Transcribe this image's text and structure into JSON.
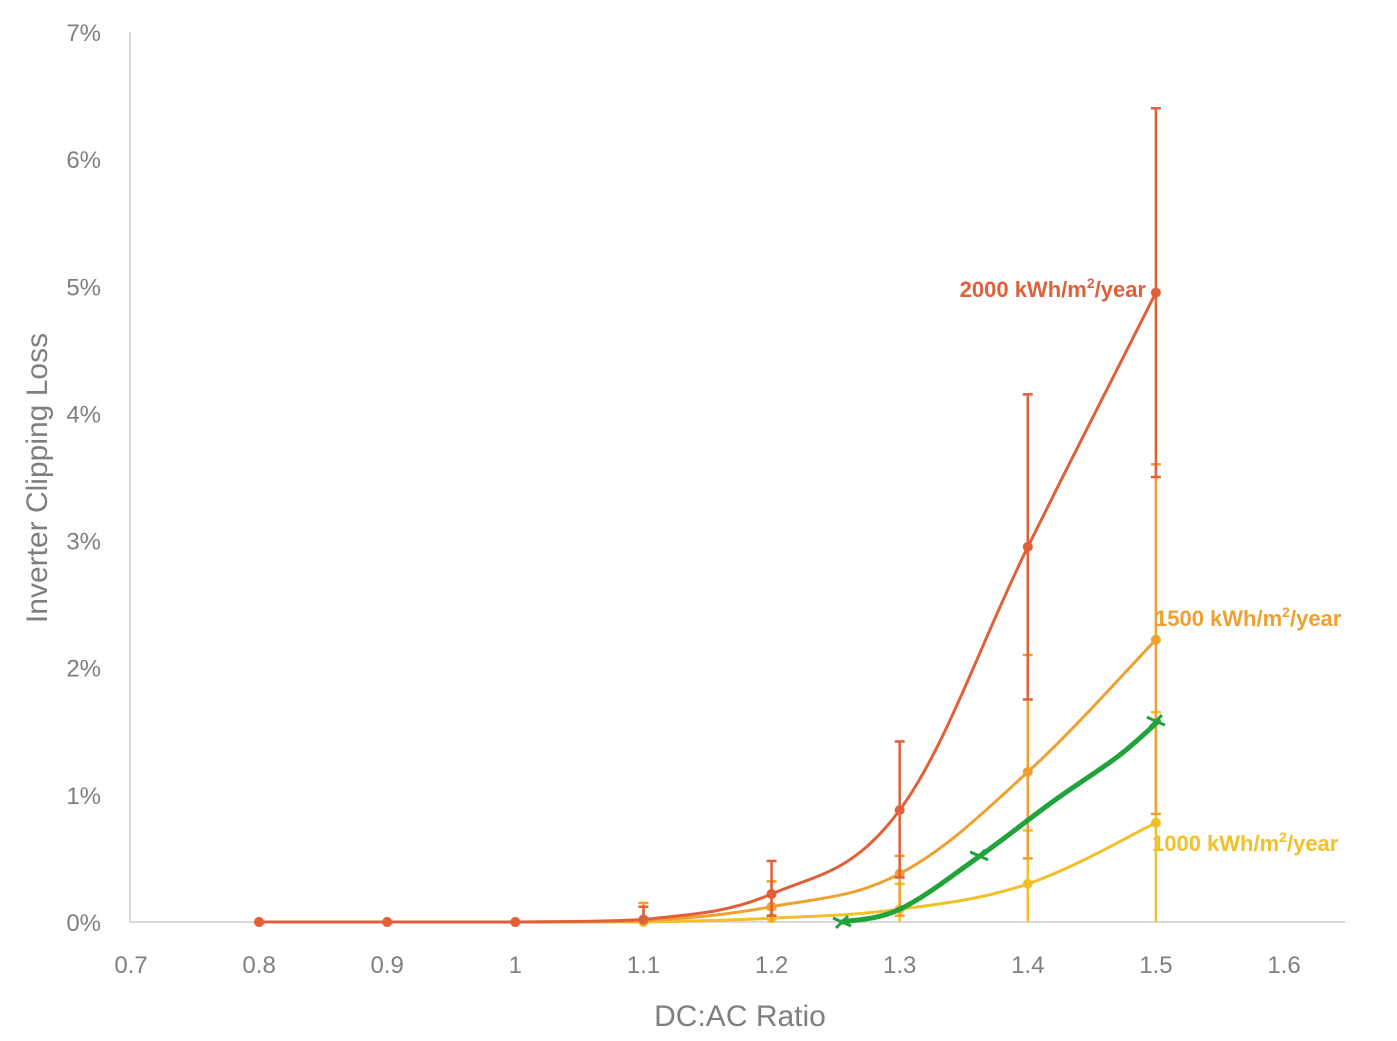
{
  "chart_data": {
    "type": "line",
    "title": "",
    "xlabel": "DC:AC Ratio",
    "ylabel": "Inverter Clipping Loss",
    "xlim": [
      0.7,
      1.65
    ],
    "ylim": [
      0,
      7
    ],
    "x_ticks": [
      0.7,
      0.8,
      0.9,
      1,
      1.1,
      1.2,
      1.3,
      1.4,
      1.5,
      1.6
    ],
    "x_tick_labels": [
      "0.7",
      "0.8",
      "0.9",
      "1",
      "1.1",
      "1.2",
      "1.3",
      "1.4",
      "1.5",
      "1.6"
    ],
    "y_ticks": [
      0,
      1,
      2,
      3,
      4,
      5,
      6,
      7
    ],
    "y_tick_labels": [
      "0%",
      "1%",
      "2%",
      "3%",
      "4%",
      "5%",
      "6%",
      "7%"
    ],
    "grid": false,
    "legend": "none (series labeled inline at line ends)",
    "series": [
      {
        "name": "2000 kWh/m²/year",
        "label_main": "2000 kWh/m",
        "label_sup": "2",
        "label_tail": "/year",
        "color": "#e0603a",
        "x": [
          0.8,
          0.9,
          1.0,
          1.1,
          1.2,
          1.3,
          1.4,
          1.5
        ],
        "y": [
          0,
          0,
          0,
          0.02,
          0.22,
          0.88,
          2.95,
          4.95
        ],
        "err_low": [
          0,
          0,
          0,
          0,
          0.05,
          0.35,
          1.75,
          3.5
        ],
        "err_high": [
          0,
          0,
          0,
          0.12,
          0.48,
          1.42,
          4.15,
          6.4
        ]
      },
      {
        "name": "1500 kWh/m²/year",
        "label_main": "1500 kWh/m",
        "label_sup": "2",
        "label_tail": "/year",
        "color": "#f0a030",
        "x": [
          0.8,
          0.9,
          1.0,
          1.1,
          1.2,
          1.3,
          1.4,
          1.5
        ],
        "y": [
          0,
          0,
          0,
          0.01,
          0.12,
          0.38,
          1.18,
          2.22
        ],
        "err_low": [
          0,
          0,
          0,
          0,
          0,
          0.05,
          0.5,
          0.85
        ],
        "err_high": [
          0,
          0,
          0,
          0.15,
          0.32,
          0.52,
          2.1,
          3.6
        ]
      },
      {
        "name": "1000 kWh/m²/year",
        "label_main": "1000 kWh/m",
        "label_sup": "2",
        "label_tail": "/year",
        "color": "#f2c02a",
        "x": [
          0.8,
          0.9,
          1.0,
          1.1,
          1.2,
          1.3,
          1.4,
          1.5
        ],
        "y": [
          0,
          0,
          0,
          0,
          0.03,
          0.1,
          0.3,
          0.78
        ],
        "err_low": [
          0,
          0,
          0,
          0,
          0,
          0,
          0,
          0
        ],
        "err_high": [
          0,
          0,
          0,
          0,
          0.1,
          0.3,
          0.72,
          1.65
        ]
      },
      {
        "name": "",
        "color": "#1fa33a",
        "style": "hand-drawn overlay",
        "x": [
          1.255,
          1.3,
          1.36,
          1.42,
          1.47,
          1.502
        ],
        "y": [
          0,
          0.1,
          0.5,
          0.95,
          1.3,
          1.58
        ],
        "ticks_at": [
          [
            1.255,
            0
          ],
          [
            1.362,
            0.52
          ],
          [
            1.5,
            1.58
          ]
        ]
      }
    ]
  }
}
